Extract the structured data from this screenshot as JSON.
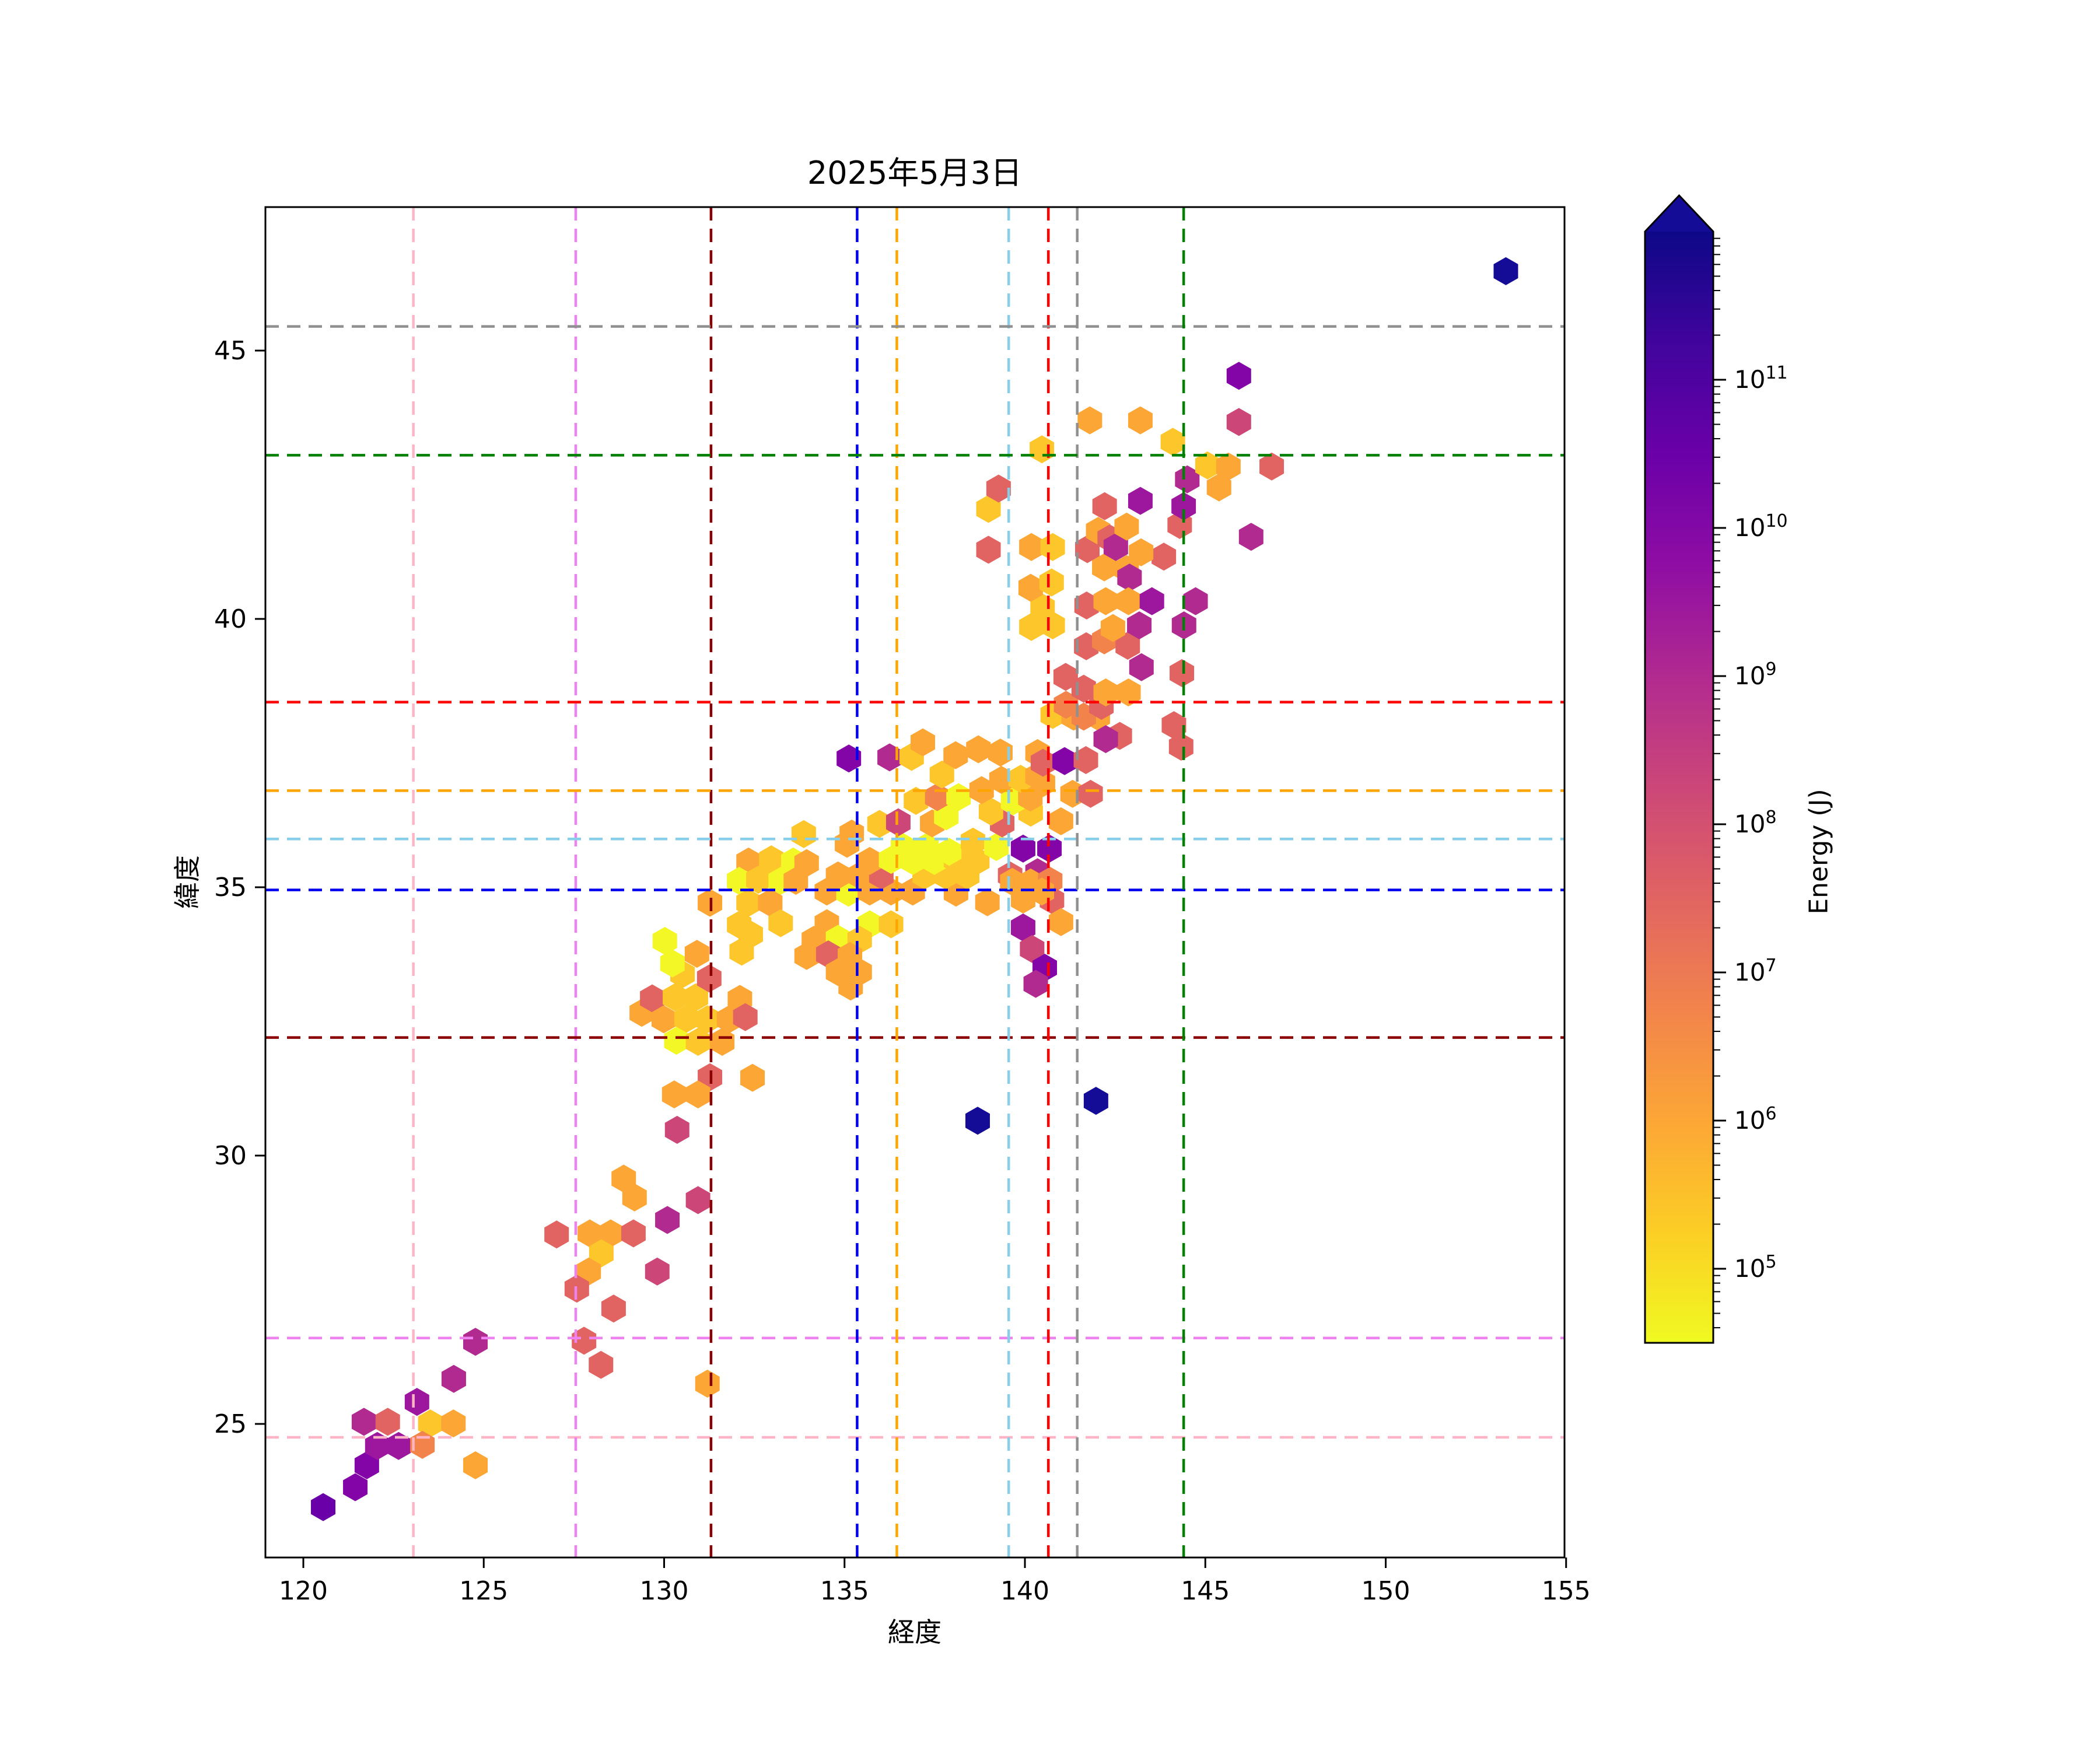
{
  "title": "2025年5月3日",
  "axes": {
    "xlabel": "経度",
    "ylabel": "緯度",
    "xticks": [
      120,
      125,
      130,
      135,
      140,
      145,
      150,
      155
    ],
    "yticks": [
      25,
      30,
      35,
      40,
      45
    ],
    "xlim": [
      118.9,
      155.1
    ],
    "ylim": [
      22.5,
      47.7
    ]
  },
  "colorbar": {
    "label": "Energy (J)",
    "tick_exponents": [
      11,
      10,
      9,
      8,
      7,
      6,
      5
    ],
    "log_min": 4.5,
    "log_max": 12,
    "scale": "log",
    "extend": "max",
    "over_color": "#140c96",
    "gradient": [
      "#f0f921",
      "#fcce25",
      "#fca636",
      "#f2844b",
      "#e16462",
      "#cc4778",
      "#b12a90",
      "#8f0da4",
      "#6a00a8",
      "#41049d",
      "#0d0887"
    ]
  },
  "reference_lines": [
    {
      "name": "pink",
      "color": "#FFB5C5",
      "lon": 123.05,
      "lat": 24.75
    },
    {
      "name": "violet",
      "color": "#EE82EE",
      "lon": 127.55,
      "lat": 26.6
    },
    {
      "name": "darkred",
      "color": "#8B0000",
      "lon": 131.3,
      "lat": 32.2
    },
    {
      "name": "blue",
      "color": "#0000EE",
      "lon": 135.35,
      "lat": 34.95
    },
    {
      "name": "orange",
      "color": "#FFA500",
      "lon": 136.45,
      "lat": 36.8
    },
    {
      "name": "skyblue",
      "color": "#87CEEB",
      "lon": 139.55,
      "lat": 35.9
    },
    {
      "name": "red",
      "color": "#FF0000",
      "lon": 140.65,
      "lat": 38.45
    },
    {
      "name": "gray",
      "color": "#909090",
      "lon": 141.45,
      "lat": 45.45
    },
    {
      "name": "green",
      "color": "#008000",
      "lon": 144.4,
      "lat": 43.05
    }
  ],
  "chart_data": {
    "type": "hexbin",
    "title": "2025年5月3日",
    "xlabel": "経度",
    "ylabel": "緯度",
    "value_label": "Energy (J)",
    "hex_width_deg": 0.68,
    "palette": [
      {
        "level": 0,
        "color": "#f2f725",
        "energy_J": 100000.0
      },
      {
        "level": 1,
        "color": "#fdc62a",
        "energy_J": 600000.0
      },
      {
        "level": 2,
        "color": "#fca636",
        "energy_J": 3000000.0
      },
      {
        "level": 3,
        "color": "#f2844b",
        "energy_J": 10000000.0
      },
      {
        "level": 4,
        "color": "#e16462",
        "energy_J": 40000000.0
      },
      {
        "level": 5,
        "color": "#cc4778",
        "energy_J": 200000000.0
      },
      {
        "level": 6,
        "color": "#b12a90",
        "energy_J": 1000000000.0
      },
      {
        "level": 7,
        "color": "#9c179e",
        "energy_J": 3000000000.0
      },
      {
        "level": 8,
        "color": "#8405a7",
        "energy_J": 10000000000.0
      },
      {
        "level": 9,
        "color": "#6a00a8",
        "energy_J": 30000000000.0
      },
      {
        "level": 10,
        "color": "#41049d",
        "energy_J": 100000000000.0
      },
      {
        "level": 11,
        "color": "#140c96",
        "energy_J": 300000000000.0
      }
    ],
    "hexes": [
      [
        120.55,
        23.45,
        9
      ],
      [
        121.44,
        23.82,
        8
      ],
      [
        121.76,
        24.23,
        8
      ],
      [
        122.05,
        24.59,
        7
      ],
      [
        122.64,
        24.59,
        7
      ],
      [
        121.68,
        25.04,
        6
      ],
      [
        122.34,
        25.04,
        4
      ],
      [
        123.15,
        25.41,
        7
      ],
      [
        123.52,
        25.01,
        1
      ],
      [
        124.16,
        25.01,
        2
      ],
      [
        123.3,
        24.61,
        3
      ],
      [
        124.77,
        24.23,
        2
      ],
      [
        124.17,
        25.84,
        6
      ],
      [
        124.77,
        26.53,
        6
      ],
      [
        127.78,
        26.55,
        4
      ],
      [
        128.25,
        26.1,
        4
      ],
      [
        131.2,
        25.75,
        2
      ],
      [
        128.88,
        29.57,
        2
      ],
      [
        129.18,
        29.22,
        2
      ],
      [
        130.94,
        29.17,
        5
      ],
      [
        130.09,
        28.8,
        6
      ],
      [
        127.02,
        28.53,
        4
      ],
      [
        127.94,
        28.55,
        2
      ],
      [
        128.52,
        28.55,
        2
      ],
      [
        129.15,
        28.55,
        4
      ],
      [
        128.26,
        28.18,
        1
      ],
      [
        127.91,
        27.84,
        2
      ],
      [
        129.81,
        27.84,
        5
      ],
      [
        127.58,
        27.52,
        4
      ],
      [
        128.6,
        27.15,
        4
      ],
      [
        129.38,
        32.66,
        2
      ],
      [
        129.67,
        32.93,
        4
      ],
      [
        129.99,
        32.54,
        2
      ],
      [
        130.3,
        32.95,
        1
      ],
      [
        130.62,
        32.55,
        1
      ],
      [
        130.88,
        32.95,
        1
      ],
      [
        131.2,
        32.54,
        1
      ],
      [
        131.8,
        32.54,
        2
      ],
      [
        132.1,
        32.92,
        2
      ],
      [
        132.25,
        32.58,
        4
      ],
      [
        130.34,
        32.14,
        0
      ],
      [
        130.94,
        32.12,
        1
      ],
      [
        131.61,
        32.12,
        2
      ],
      [
        130.51,
        33.38,
        1
      ],
      [
        131.25,
        33.3,
        4
      ],
      [
        130.02,
        34.0,
        0
      ],
      [
        130.23,
        33.58,
        0
      ],
      [
        130.91,
        33.76,
        2
      ],
      [
        131.27,
        31.46,
        4
      ],
      [
        130.28,
        31.14,
        2
      ],
      [
        130.94,
        31.14,
        2
      ],
      [
        130.36,
        30.48,
        5
      ],
      [
        132.45,
        31.45,
        2
      ],
      [
        133.87,
        35.99,
        1
      ],
      [
        132.34,
        35.48,
        2
      ],
      [
        132.97,
        35.52,
        1
      ],
      [
        133.58,
        35.48,
        0
      ],
      [
        132.08,
        35.12,
        0
      ],
      [
        132.61,
        35.14,
        1
      ],
      [
        133.23,
        35.12,
        0
      ],
      [
        133.65,
        35.12,
        2
      ],
      [
        133.95,
        35.45,
        2
      ],
      [
        131.27,
        34.71,
        2
      ],
      [
        132.34,
        34.71,
        1
      ],
      [
        132.94,
        34.71,
        2
      ],
      [
        132.08,
        34.3,
        1
      ],
      [
        132.4,
        34.12,
        1
      ],
      [
        132.15,
        33.8,
        1
      ],
      [
        133.23,
        34.33,
        1
      ],
      [
        134.51,
        34.33,
        2
      ],
      [
        135.7,
        34.31,
        0
      ],
      [
        136.29,
        34.31,
        1
      ],
      [
        134.15,
        34.02,
        2
      ],
      [
        134.82,
        34.04,
        0
      ],
      [
        135.42,
        34.02,
        1
      ],
      [
        133.95,
        33.72,
        2
      ],
      [
        134.55,
        33.75,
        4
      ],
      [
        135.15,
        33.72,
        2
      ],
      [
        134.82,
        33.42,
        2
      ],
      [
        135.42,
        33.42,
        2
      ],
      [
        135.17,
        33.15,
        2
      ],
      [
        134.51,
        34.92,
        2
      ],
      [
        135.11,
        34.9,
        0
      ],
      [
        135.7,
        34.92,
        2
      ],
      [
        136.29,
        34.92,
        2
      ],
      [
        136.89,
        34.92,
        2
      ],
      [
        138.09,
        34.9,
        2
      ],
      [
        138.96,
        34.72,
        2
      ],
      [
        134.82,
        35.22,
        2
      ],
      [
        135.42,
        35.22,
        2
      ],
      [
        136.02,
        35.22,
        4
      ],
      [
        137.22,
        35.22,
        1
      ],
      [
        137.8,
        35.22,
        1
      ],
      [
        138.4,
        35.22,
        1
      ],
      [
        139.59,
        35.22,
        4
      ],
      [
        135.7,
        35.49,
        2
      ],
      [
        136.29,
        35.51,
        0
      ],
      [
        136.89,
        35.49,
        0
      ],
      [
        137.49,
        35.49,
        0
      ],
      [
        138.09,
        35.51,
        1
      ],
      [
        138.68,
        35.49,
        1
      ],
      [
        135.07,
        35.81,
        2
      ],
      [
        136.62,
        35.75,
        0
      ],
      [
        137.27,
        35.75,
        0
      ],
      [
        137.9,
        35.66,
        0
      ],
      [
        138.56,
        35.85,
        1
      ],
      [
        139.21,
        35.75,
        0
      ],
      [
        135.2,
        36.0,
        2
      ],
      [
        135.97,
        36.18,
        1
      ],
      [
        136.49,
        36.21,
        5
      ],
      [
        137.43,
        36.19,
        2
      ],
      [
        137.82,
        36.32,
        0
      ],
      [
        139.37,
        36.19,
        4
      ],
      [
        139.06,
        36.41,
        1
      ],
      [
        140.16,
        36.39,
        1
      ],
      [
        141.0,
        36.23,
        2
      ],
      [
        136.98,
        36.61,
        1
      ],
      [
        137.57,
        36.68,
        3
      ],
      [
        138.16,
        36.68,
        0
      ],
      [
        139.67,
        36.6,
        0
      ],
      [
        140.15,
        36.67,
        2
      ],
      [
        141.32,
        36.74,
        2
      ],
      [
        141.82,
        36.74,
        4
      ],
      [
        138.8,
        36.81,
        2
      ],
      [
        137.7,
        37.1,
        1
      ],
      [
        139.35,
        37.0,
        2
      ],
      [
        139.88,
        37.02,
        1
      ],
      [
        140.5,
        36.94,
        2
      ],
      [
        140.35,
        37.07,
        2
      ],
      [
        135.12,
        37.4,
        8
      ],
      [
        136.25,
        37.42,
        6
      ],
      [
        136.86,
        37.43,
        1
      ],
      [
        137.17,
        37.7,
        2
      ],
      [
        138.08,
        37.46,
        2
      ],
      [
        138.71,
        37.57,
        2
      ],
      [
        139.32,
        37.51,
        2
      ],
      [
        140.35,
        37.5,
        2
      ],
      [
        140.5,
        37.32,
        4
      ],
      [
        141.1,
        37.35,
        8
      ],
      [
        141.69,
        37.37,
        4
      ],
      [
        139.95,
        35.72,
        8
      ],
      [
        140.68,
        35.72,
        8
      ],
      [
        140.35,
        35.28,
        6
      ],
      [
        139.65,
        35.1,
        2
      ],
      [
        140.16,
        35.09,
        2
      ],
      [
        140.7,
        35.12,
        3
      ],
      [
        139.95,
        34.77,
        2
      ],
      [
        140.75,
        34.76,
        4
      ],
      [
        141.0,
        34.35,
        2
      ],
      [
        140.47,
        34.92,
        2
      ],
      [
        139.95,
        34.25,
        7
      ],
      [
        140.2,
        33.85,
        5
      ],
      [
        140.55,
        33.5,
        8
      ],
      [
        140.3,
        33.2,
        6
      ],
      [
        138.69,
        30.65,
        11
      ],
      [
        141.97,
        31.02,
        11
      ],
      [
        153.33,
        46.48,
        11
      ],
      [
        140.77,
        38.21,
        1
      ],
      [
        141.35,
        38.18,
        2
      ],
      [
        142.02,
        38.18,
        2
      ],
      [
        141.63,
        38.18,
        3
      ],
      [
        141.14,
        38.4,
        3
      ],
      [
        141.13,
        38.92,
        4
      ],
      [
        141.63,
        38.7,
        4
      ],
      [
        142.12,
        38.38,
        4
      ],
      [
        142.63,
        37.82,
        4
      ],
      [
        142.24,
        37.76,
        6
      ],
      [
        142.24,
        38.63,
        2
      ],
      [
        142.87,
        38.63,
        2
      ],
      [
        144.13,
        38.02,
        4
      ],
      [
        144.35,
        38.99,
        4
      ],
      [
        144.33,
        37.62,
        4
      ],
      [
        141.7,
        39.49,
        4
      ],
      [
        142.2,
        39.6,
        3
      ],
      [
        142.85,
        39.5,
        4
      ],
      [
        142.44,
        39.83,
        2
      ],
      [
        143.17,
        39.88,
        6
      ],
      [
        144.41,
        39.88,
        6
      ],
      [
        143.23,
        39.1,
        6
      ],
      [
        140.18,
        39.85,
        1
      ],
      [
        140.77,
        39.88,
        1
      ],
      [
        140.49,
        40.21,
        1
      ],
      [
        140.16,
        40.58,
        2
      ],
      [
        140.74,
        40.68,
        1
      ],
      [
        140.18,
        41.34,
        2
      ],
      [
        140.77,
        41.34,
        1
      ],
      [
        141.71,
        40.25,
        4
      ],
      [
        142.2,
        40.96,
        2
      ],
      [
        142.82,
        40.93,
        2
      ],
      [
        142.9,
        40.77,
        6
      ],
      [
        142.24,
        40.33,
        2
      ],
      [
        142.87,
        40.33,
        2
      ],
      [
        143.52,
        40.33,
        7
      ],
      [
        144.73,
        40.33,
        6
      ],
      [
        138.99,
        41.29,
        4
      ],
      [
        138.99,
        42.05,
        1
      ],
      [
        139.27,
        42.43,
        4
      ],
      [
        140.47,
        43.16,
        1
      ],
      [
        141.73,
        41.3,
        4
      ],
      [
        142.03,
        41.64,
        2
      ],
      [
        142.35,
        41.5,
        4
      ],
      [
        142.52,
        41.34,
        6
      ],
      [
        142.82,
        41.72,
        2
      ],
      [
        143.85,
        41.16,
        4
      ],
      [
        143.22,
        41.24,
        2
      ],
      [
        146.27,
        41.53,
        6
      ],
      [
        144.29,
        41.75,
        4
      ],
      [
        142.21,
        42.1,
        4
      ],
      [
        143.2,
        42.2,
        7
      ],
      [
        144.4,
        42.1,
        7
      ],
      [
        144.5,
        42.6,
        6
      ],
      [
        145.38,
        42.45,
        2
      ],
      [
        145.93,
        44.53,
        8
      ],
      [
        145.93,
        43.67,
        5
      ],
      [
        141.8,
        43.7,
        2
      ],
      [
        143.2,
        43.7,
        2
      ],
      [
        144.1,
        43.3,
        1
      ],
      [
        145.06,
        42.86,
        1
      ],
      [
        145.64,
        42.84,
        2
      ],
      [
        146.84,
        42.84,
        4
      ]
    ]
  }
}
